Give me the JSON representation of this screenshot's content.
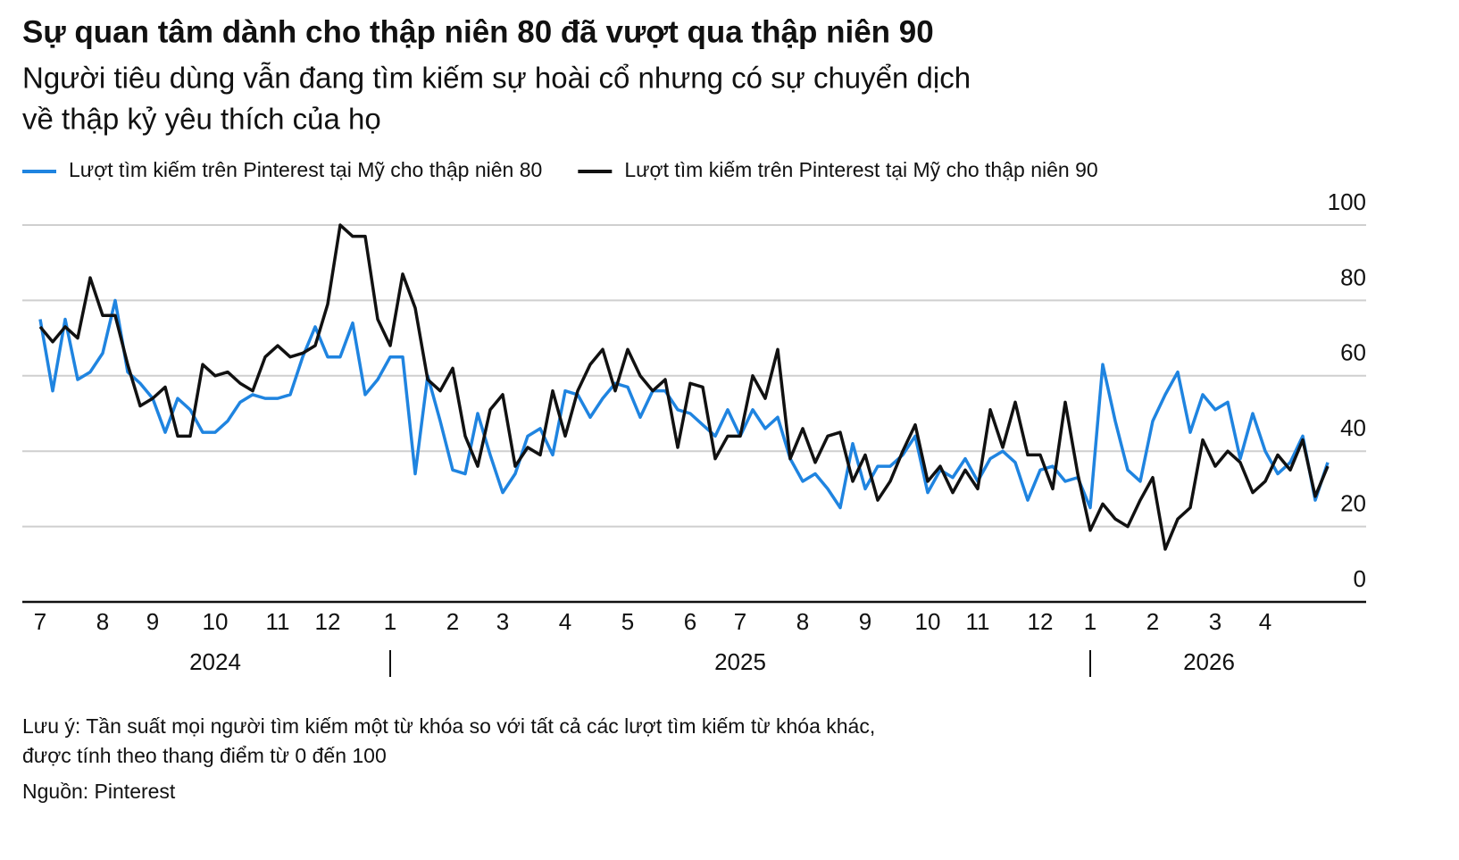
{
  "chart_data": {
    "type": "line",
    "title": "Sự quan tâm dành cho thập niên 80 đã vượt qua thập niên 90",
    "subtitle": [
      "Người tiêu dùng vẫn đang tìm kiếm sự hoài cổ nhưng có sự chuyển dịch",
      "về thập kỷ yêu thích của họ"
    ],
    "categories": [
      "7",
      null,
      null,
      null,
      null,
      "8",
      null,
      null,
      null,
      "9",
      null,
      null,
      null,
      null,
      "10",
      null,
      null,
      null,
      null,
      "11",
      null,
      null,
      null,
      "12",
      null,
      null,
      null,
      null,
      "1",
      null,
      null,
      null,
      null,
      "2",
      null,
      null,
      null,
      "3",
      null,
      null,
      null,
      null,
      "4",
      null,
      null,
      null,
      null,
      "5",
      null,
      null,
      null,
      null,
      "6",
      null,
      null,
      null,
      "7",
      null,
      null,
      null,
      null,
      "8",
      null,
      null,
      null,
      null,
      "9",
      null,
      null,
      null,
      null,
      "10",
      null,
      null,
      null,
      "11",
      null,
      null,
      null,
      null,
      "12",
      null,
      null,
      null,
      "1",
      null,
      null,
      null,
      null,
      "2",
      null,
      null,
      null,
      null,
      "3",
      null,
      null,
      null,
      "4",
      null,
      null,
      null,
      null,
      null
    ],
    "years": [
      "2024",
      "2025",
      "2026"
    ],
    "series": [
      {
        "name": "Lượt tìm kiếm trên Pinterest tại Mỹ cho thập niên 80",
        "color": "#1f84e0",
        "values": [
          75,
          56,
          75,
          59,
          61,
          66,
          80,
          61,
          58,
          54,
          45,
          54,
          51,
          45,
          45,
          48,
          53,
          55,
          54,
          54,
          55,
          65,
          73,
          65,
          65,
          74,
          55,
          59,
          65,
          65,
          34,
          60,
          48,
          35,
          34,
          50,
          39,
          29,
          34,
          44,
          46,
          39,
          56,
          55,
          49,
          54,
          58,
          57,
          49,
          56,
          56,
          51,
          50,
          47,
          44,
          51,
          44,
          51,
          46,
          49,
          38,
          32,
          34,
          30,
          25,
          42,
          30,
          36,
          36,
          39,
          44,
          29,
          35,
          33,
          38,
          32,
          38,
          40,
          37,
          27,
          35,
          36,
          32,
          33,
          25,
          63,
          48,
          35,
          32,
          48,
          55,
          61,
          45,
          55,
          51,
          53,
          38,
          50,
          40,
          34,
          37,
          44,
          27,
          37
        ]
      },
      {
        "name": "Lượt tìm kiếm trên Pinterest tại Mỹ cho thập niên 90",
        "color": "#111111",
        "values": [
          73,
          69,
          73,
          70,
          86,
          76,
          76,
          63,
          52,
          54,
          57,
          44,
          44,
          63,
          60,
          61,
          58,
          56,
          65,
          68,
          65,
          66,
          68,
          79,
          100,
          97,
          97,
          75,
          68,
          87,
          78,
          59,
          56,
          62,
          44,
          36,
          51,
          55,
          36,
          41,
          39,
          56,
          44,
          56,
          63,
          67,
          56,
          67,
          60,
          56,
          59,
          41,
          58,
          57,
          38,
          44,
          44,
          60,
          54,
          67,
          38,
          46,
          37,
          44,
          45,
          32,
          39,
          27,
          32,
          40,
          47,
          32,
          36,
          29,
          35,
          30,
          51,
          41,
          53,
          39,
          39,
          30,
          53,
          34,
          19,
          26,
          22,
          20,
          27,
          33,
          14,
          22,
          25,
          43,
          36,
          40,
          37,
          29,
          32,
          39,
          35,
          43,
          28,
          36
        ]
      }
    ],
    "ylim": [
      0,
      100
    ],
    "yticks": [
      0,
      20,
      40,
      60,
      80,
      100
    ],
    "grid": true,
    "legend": "top-left",
    "note": [
      "Lưu ý: Tần suất mọi người tìm kiếm một từ khóa so với tất cả các lượt tìm kiếm từ khóa khác,",
      "được tính theo thang điểm từ 0 đến 100"
    ],
    "source": "Nguồn: Pinterest"
  }
}
